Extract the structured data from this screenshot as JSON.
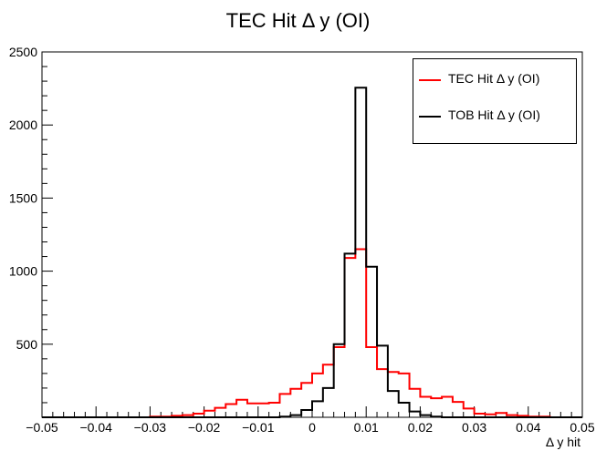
{
  "chart_data": {
    "type": "line",
    "title": "TEC Hit Δ y (OI)",
    "xlabel": "Δ y hit",
    "ylabel": "",
    "xlim": [
      -0.05,
      0.05
    ],
    "ylim": [
      0,
      2500
    ],
    "yticks": [
      500,
      1000,
      1500,
      2000,
      2500
    ],
    "xticks": [
      -0.05,
      -0.04,
      -0.03,
      -0.02,
      -0.01,
      0,
      0.01,
      0.02,
      0.03,
      0.04,
      0.05
    ],
    "xticklabels": [
      "−0.05",
      "−0.04",
      "−0.03",
      "−0.02",
      "−0.01",
      "0",
      "0.01",
      "0.02",
      "0.03",
      "0.04",
      "0.05"
    ],
    "legend_position": "top-right",
    "bin_edges_start": -0.05,
    "bin_width": 0.002,
    "series": [
      {
        "name": "TEC Hit Δ y (OI)",
        "color": "#ff0000",
        "values": [
          0,
          0,
          0,
          0,
          0,
          0,
          0,
          0,
          0,
          0,
          5,
          5,
          10,
          15,
          25,
          45,
          65,
          90,
          120,
          95,
          95,
          100,
          160,
          195,
          235,
          300,
          360,
          480,
          1090,
          1150,
          480,
          330,
          310,
          300,
          195,
          140,
          130,
          140,
          105,
          60,
          25,
          20,
          30,
          15,
          10,
          5,
          5,
          0,
          0,
          0
        ]
      },
      {
        "name": "TOB Hit Δ y (OI)",
        "color": "#000000",
        "values": [
          0,
          0,
          0,
          0,
          0,
          0,
          0,
          0,
          0,
          0,
          0,
          0,
          0,
          0,
          0,
          0,
          0,
          0,
          0,
          0,
          0,
          0,
          5,
          15,
          50,
          110,
          200,
          500,
          1120,
          2255,
          1030,
          490,
          180,
          100,
          40,
          15,
          5,
          0,
          0,
          0,
          0,
          0,
          0,
          0,
          0,
          0,
          0,
          0,
          0,
          0
        ]
      }
    ]
  }
}
